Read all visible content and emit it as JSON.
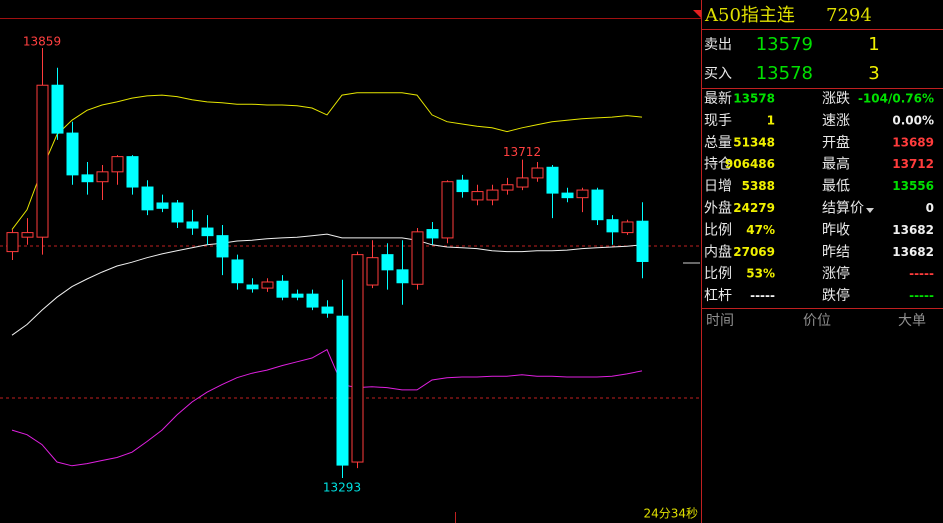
{
  "chart_data": {
    "type": "candlestick",
    "up_color": "#ff3c3c",
    "down_color": "#00ffff",
    "open": [
      13591,
      13610,
      13610,
      13810,
      13747,
      13692,
      13683,
      13696,
      13716,
      13676,
      13655,
      13655,
      13630,
      13622,
      13612,
      13580,
      13547,
      13543,
      13552,
      13535,
      13535,
      13518,
      13506,
      13314,
      13547,
      13587,
      13567,
      13548,
      13620,
      13609,
      13685,
      13659,
      13659,
      13672,
      13676,
      13688,
      13702,
      13668,
      13662,
      13672,
      13633,
      13616,
      13631
    ],
    "high": [
      13620,
      13635,
      13859,
      13833,
      13762,
      13709,
      13705,
      13718,
      13718,
      13685,
      13666,
      13659,
      13646,
      13639,
      13626,
      13587,
      13556,
      13556,
      13560,
      13541,
      13541,
      13527,
      13554,
      13591,
      13606,
      13602,
      13606,
      13622,
      13630,
      13685,
      13692,
      13679,
      13679,
      13688,
      13712,
      13709,
      13705,
      13675,
      13675,
      13675,
      13639,
      13633,
      13656
    ],
    "low": [
      13580,
      13600,
      13587,
      13738,
      13679,
      13666,
      13659,
      13679,
      13666,
      13639,
      13643,
      13622,
      13613,
      13600,
      13560,
      13541,
      13537,
      13538,
      13527,
      13527,
      13514,
      13504,
      13293,
      13306,
      13543,
      13541,
      13521,
      13541,
      13600,
      13602,
      13662,
      13652,
      13652,
      13666,
      13672,
      13683,
      13635,
      13656,
      13643,
      13626,
      13600,
      13613,
      13556
    ],
    "close": [
      13616,
      13616,
      13810,
      13747,
      13692,
      13683,
      13696,
      13716,
      13676,
      13646,
      13648,
      13630,
      13622,
      13612,
      13584,
      13550,
      13542,
      13551,
      13531,
      13531,
      13518,
      13510,
      13310,
      13587,
      13583,
      13567,
      13550,
      13617,
      13609,
      13683,
      13670,
      13670,
      13672,
      13679,
      13688,
      13701,
      13668,
      13662,
      13672,
      13633,
      13617,
      13630,
      13578
    ],
    "bands": [
      {
        "color": "#e6e600",
        "values": [
          13620,
          13646,
          13699,
          13745,
          13764,
          13777,
          13784,
          13788,
          13793,
          13796,
          13797,
          13795,
          13791,
          13788,
          13787,
          13785,
          13785,
          13784,
          13784,
          13783,
          13780,
          13771,
          13797,
          13800,
          13800,
          13800,
          13800,
          13797,
          13771,
          13762,
          13759,
          13756,
          13754,
          13749,
          13754,
          13758,
          13762,
          13764,
          13766,
          13767,
          13768,
          13770,
          13768
        ]
      },
      {
        "color": "#f0f0f0",
        "values": [
          13481,
          13495,
          13514,
          13531,
          13545,
          13555,
          13564,
          13572,
          13577,
          13583,
          13588,
          13592,
          13596,
          13600,
          13602,
          13605,
          13606,
          13608,
          13609,
          13610,
          13612,
          13614,
          13609,
          13609,
          13609,
          13609,
          13609,
          13606,
          13600,
          13597,
          13596,
          13595,
          13592,
          13591,
          13591,
          13592,
          13592,
          13593,
          13595,
          13596,
          13597,
          13598,
          13600
        ]
      },
      {
        "color": "#e020e0",
        "values": [
          13356,
          13350,
          13337,
          13314,
          13309,
          13312,
          13316,
          13320,
          13327,
          13341,
          13356,
          13376,
          13393,
          13406,
          13416,
          13425,
          13431,
          13435,
          13441,
          13446,
          13451,
          13462,
          13416,
          13412,
          13413,
          13412,
          13409,
          13409,
          13422,
          13425,
          13426,
          13426,
          13427,
          13427,
          13429,
          13427,
          13427,
          13426,
          13426,
          13426,
          13427,
          13430,
          13434
        ]
      }
    ],
    "footer": "24分34秒"
  },
  "quote_panel": {
    "title": "A50指主连",
    "code": "7294",
    "ask": {
      "label": "卖出",
      "price": 13579,
      "volume": 1
    },
    "bid": {
      "label": "买入",
      "price": 13578,
      "volume": 3
    },
    "rows": [
      {
        "left": {
          "label": "最新",
          "value": 13578,
          "color": "#00e000"
        },
        "right": {
          "label": "涨跌",
          "value": "-104/0.76%",
          "color": "#00e000"
        }
      },
      {
        "left": {
          "label": "现手",
          "value": 1,
          "color": "#f0f000"
        },
        "right": {
          "label": "速涨",
          "value": "0.00%",
          "color": "#f0f0f0"
        }
      },
      {
        "left": {
          "label": "总量",
          "value": 51348,
          "color": "#f0f000"
        },
        "right": {
          "label": "开盘",
          "value": 13689,
          "color": "#ff3c3c"
        }
      },
      {
        "left": {
          "label": "持仓",
          "value": 906486,
          "color": "#f0f000"
        },
        "right": {
          "label": "最高",
          "value": 13712,
          "color": "#ff3c3c"
        }
      },
      {
        "left": {
          "label": "日增",
          "value": 5388,
          "color": "#f0f000"
        },
        "right": {
          "label": "最低",
          "value": 13556,
          "color": "#00e000"
        }
      },
      {
        "left": {
          "label": "外盘",
          "value": 24279,
          "color": "#f0f000"
        },
        "right": {
          "label": "结算价",
          "value": 0,
          "color": "#f0f0f0"
        }
      },
      {
        "left": {
          "label": "比例",
          "value": "47%",
          "color": "#f0f000"
        },
        "right": {
          "label": "昨收",
          "value": 13682,
          "color": "#f0f0f0"
        }
      },
      {
        "left": {
          "label": "内盘",
          "value": 27069,
          "color": "#f0f000"
        },
        "right": {
          "label": "昨结",
          "value": 13682,
          "color": "#f0f0f0"
        }
      },
      {
        "left": {
          "label": "比例",
          "value": "53%",
          "color": "#f0f000"
        },
        "right": {
          "label": "涨停",
          "value": "-----",
          "color": "#ff3c3c"
        }
      },
      {
        "left": {
          "label": "杠杆",
          "value": "-----",
          "color": "#f0f0f0"
        },
        "right": {
          "label": "跌停",
          "value": "-----",
          "color": "#00e000"
        }
      }
    ],
    "list_header": [
      "时间",
      "价位",
      "大单"
    ]
  }
}
